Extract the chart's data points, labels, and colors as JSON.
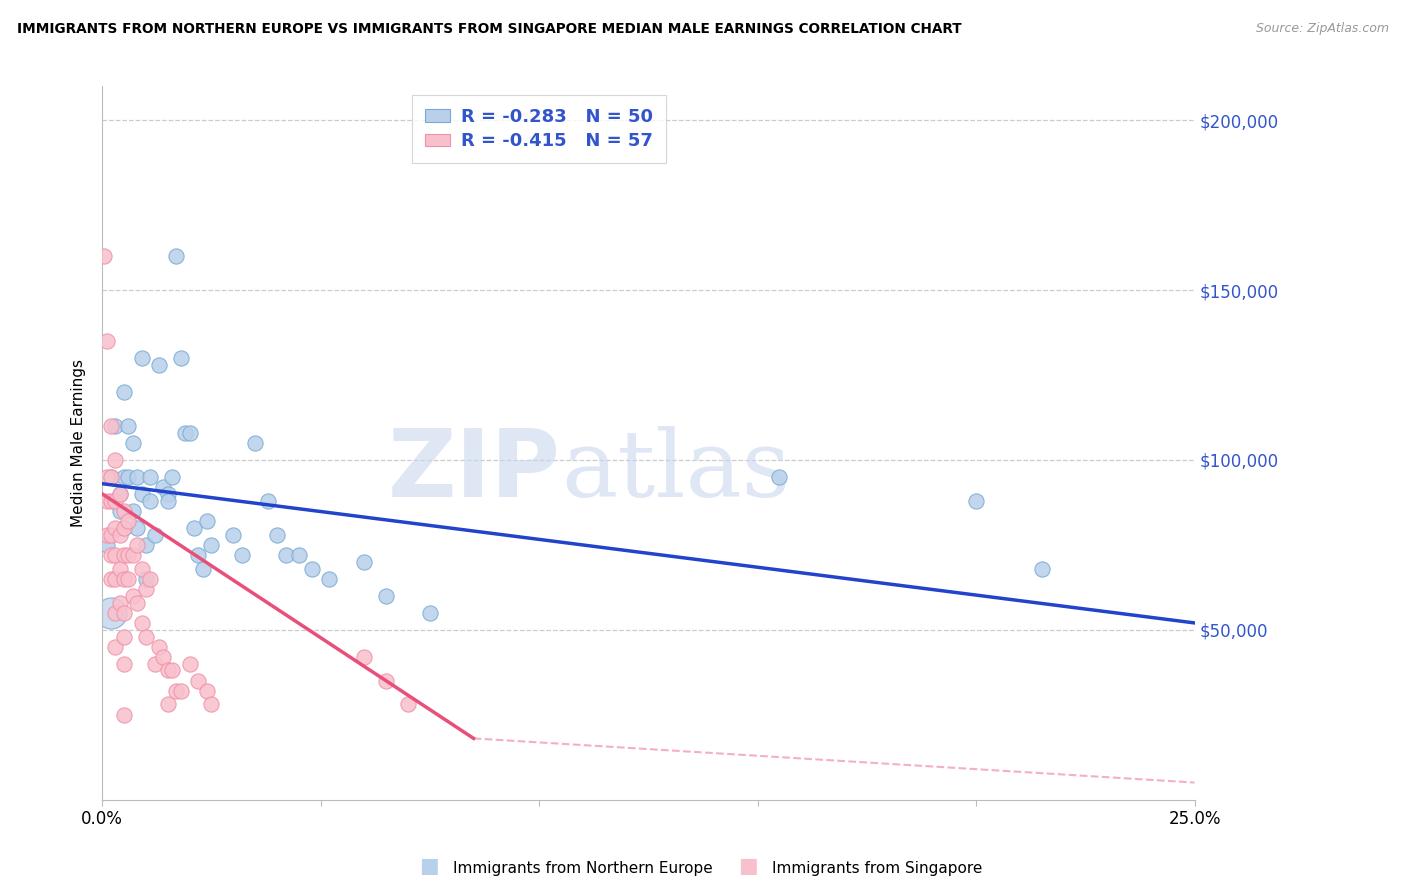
{
  "title": "IMMIGRANTS FROM NORTHERN EUROPE VS IMMIGRANTS FROM SINGAPORE MEDIAN MALE EARNINGS CORRELATION CHART",
  "source": "Source: ZipAtlas.com",
  "ylabel": "Median Male Earnings",
  "x_min": 0.0,
  "x_max": 0.25,
  "y_min": 0,
  "y_max": 210000,
  "R_blue": -0.283,
  "N_blue": 50,
  "R_pink": -0.415,
  "N_pink": 57,
  "blue_fill": "#b8d0ea",
  "blue_edge": "#7aaad4",
  "pink_fill": "#f8c0cc",
  "pink_edge": "#f090a8",
  "trend_blue_color": "#2244cc",
  "trend_pink_color": "#e8507a",
  "legend_label_blue": "Immigrants from Northern Europe",
  "legend_label_pink": "Immigrants from Singapore",
  "watermark_zip": "ZIP",
  "watermark_atlas": "atlas",
  "blue_x": [
    0.001,
    0.002,
    0.003,
    0.004,
    0.004,
    0.005,
    0.005,
    0.005,
    0.006,
    0.006,
    0.007,
    0.007,
    0.008,
    0.008,
    0.009,
    0.009,
    0.01,
    0.01,
    0.011,
    0.011,
    0.012,
    0.013,
    0.014,
    0.015,
    0.015,
    0.016,
    0.017,
    0.018,
    0.019,
    0.02,
    0.021,
    0.022,
    0.023,
    0.024,
    0.025,
    0.03,
    0.032,
    0.035,
    0.038,
    0.04,
    0.042,
    0.045,
    0.048,
    0.052,
    0.06,
    0.065,
    0.075,
    0.155,
    0.2,
    0.215
  ],
  "blue_y": [
    75000,
    95000,
    110000,
    90000,
    85000,
    120000,
    95000,
    80000,
    110000,
    95000,
    105000,
    85000,
    95000,
    80000,
    130000,
    90000,
    75000,
    65000,
    95000,
    88000,
    78000,
    128000,
    92000,
    90000,
    88000,
    95000,
    160000,
    130000,
    108000,
    108000,
    80000,
    72000,
    68000,
    82000,
    75000,
    78000,
    72000,
    105000,
    88000,
    78000,
    72000,
    72000,
    68000,
    65000,
    70000,
    60000,
    55000,
    95000,
    88000,
    68000
  ],
  "pink_x": [
    0.0005,
    0.001,
    0.001,
    0.001,
    0.001,
    0.002,
    0.002,
    0.002,
    0.002,
    0.002,
    0.002,
    0.003,
    0.003,
    0.003,
    0.003,
    0.003,
    0.003,
    0.003,
    0.004,
    0.004,
    0.004,
    0.004,
    0.005,
    0.005,
    0.005,
    0.005,
    0.005,
    0.005,
    0.005,
    0.005,
    0.006,
    0.006,
    0.006,
    0.007,
    0.007,
    0.008,
    0.008,
    0.009,
    0.009,
    0.01,
    0.01,
    0.011,
    0.012,
    0.013,
    0.014,
    0.015,
    0.015,
    0.016,
    0.017,
    0.018,
    0.02,
    0.022,
    0.024,
    0.025,
    0.06,
    0.065,
    0.07
  ],
  "pink_y": [
    160000,
    135000,
    95000,
    88000,
    78000,
    110000,
    95000,
    88000,
    78000,
    72000,
    65000,
    100000,
    88000,
    80000,
    72000,
    65000,
    55000,
    45000,
    90000,
    78000,
    68000,
    58000,
    85000,
    80000,
    72000,
    65000,
    55000,
    48000,
    40000,
    25000,
    82000,
    72000,
    65000,
    72000,
    60000,
    75000,
    58000,
    68000,
    52000,
    62000,
    48000,
    65000,
    40000,
    45000,
    42000,
    38000,
    28000,
    38000,
    32000,
    32000,
    40000,
    35000,
    32000,
    28000,
    42000,
    35000,
    28000
  ],
  "blue_trend": [
    0.0,
    93000,
    0.25,
    52000
  ],
  "pink_trend_solid": [
    0.0,
    90000,
    0.085,
    18000
  ],
  "pink_trend_dash": [
    0.085,
    18000,
    0.25,
    5000
  ]
}
